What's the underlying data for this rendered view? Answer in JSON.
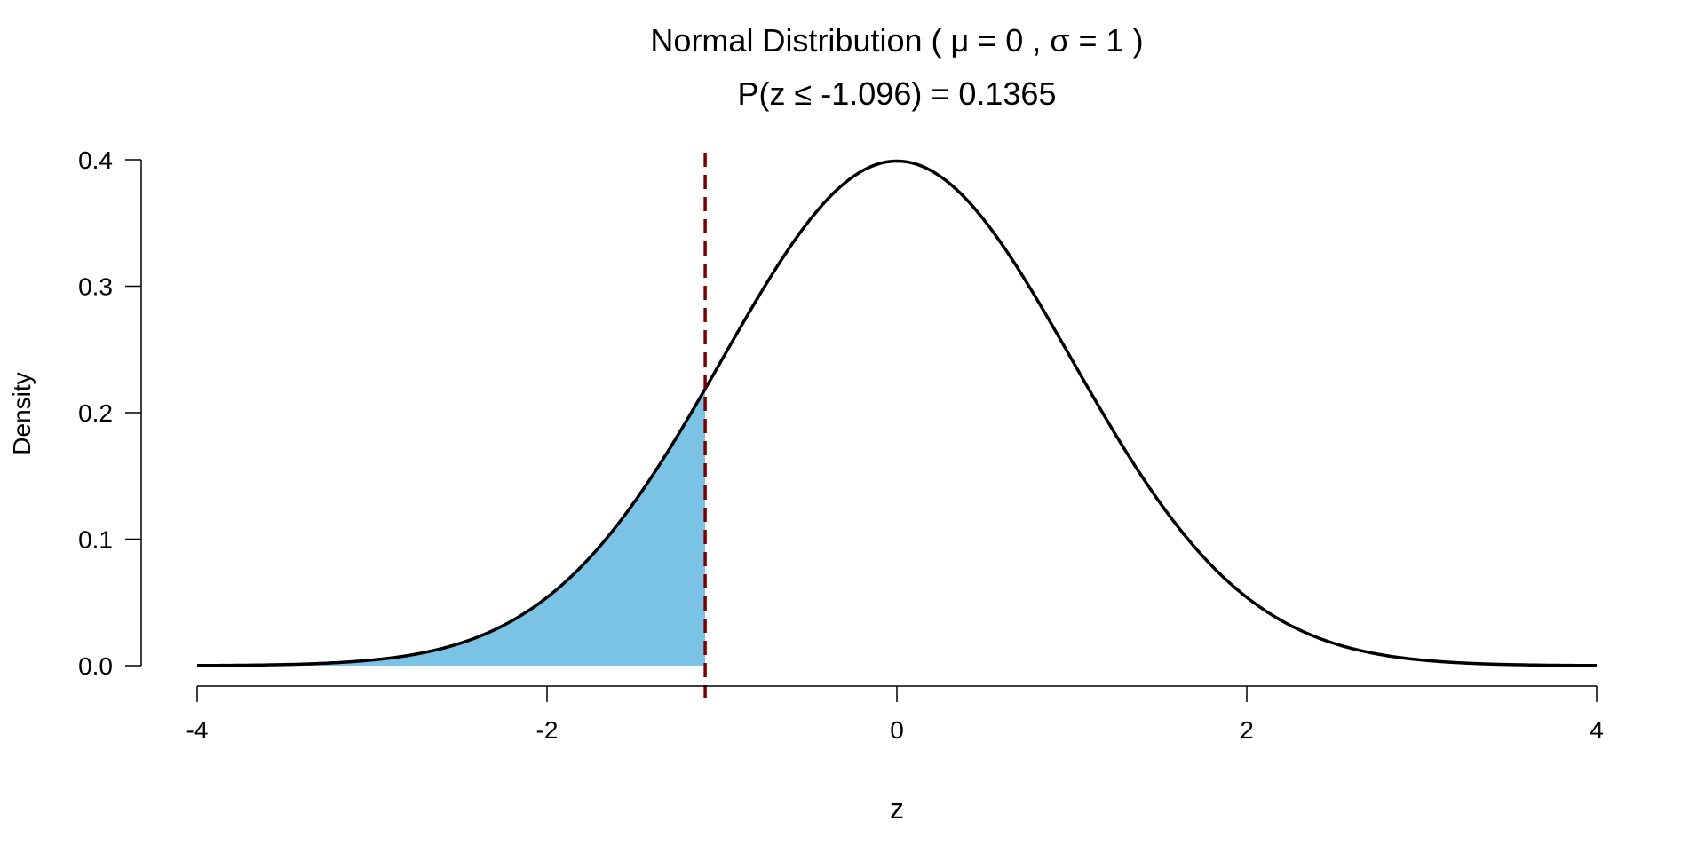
{
  "chart_data": {
    "type": "area",
    "title": "Normal Distribution ( μ = 0 , σ = 1 )",
    "subtitle": "P(z ≤ -1.096) = 0.1365",
    "xlabel": "z",
    "ylabel": "Density",
    "xlim": [
      -4,
      4
    ],
    "ylim": [
      0,
      0.4
    ],
    "x_ticks": [
      -4,
      -2,
      0,
      2,
      4
    ],
    "x_tick_labels": [
      "-4",
      "-2",
      "0",
      "2",
      "4"
    ],
    "y_ticks": [
      0,
      0.1,
      0.2,
      0.3,
      0.4
    ],
    "y_tick_labels": [
      "0.0",
      "0.1",
      "0.2",
      "0.3",
      "0.4"
    ],
    "distribution": {
      "name": "normal",
      "mean": 0,
      "sd": 1
    },
    "curve": {
      "x": [
        -4.0,
        -3.5,
        -3.0,
        -2.5,
        -2.0,
        -1.5,
        -1.096,
        -1.0,
        -0.5,
        0.0,
        0.5,
        1.0,
        1.5,
        2.0,
        2.5,
        3.0,
        3.5,
        4.0
      ],
      "y": [
        0.0001,
        0.0009,
        0.0044,
        0.0175,
        0.054,
        0.1295,
        0.2189,
        0.242,
        0.3521,
        0.3989,
        0.3521,
        0.242,
        0.1295,
        0.054,
        0.0175,
        0.0044,
        0.0009,
        0.0001
      ]
    },
    "shaded_region": {
      "from": -4,
      "to": -1.096,
      "probability": 0.1365
    },
    "cutoff": -1.096,
    "colors": {
      "fill": "#7BC3E4",
      "curve": "#000000",
      "cutoff_line": "#7A0000",
      "axis": "#000000"
    },
    "grid": false,
    "legend": "none"
  }
}
